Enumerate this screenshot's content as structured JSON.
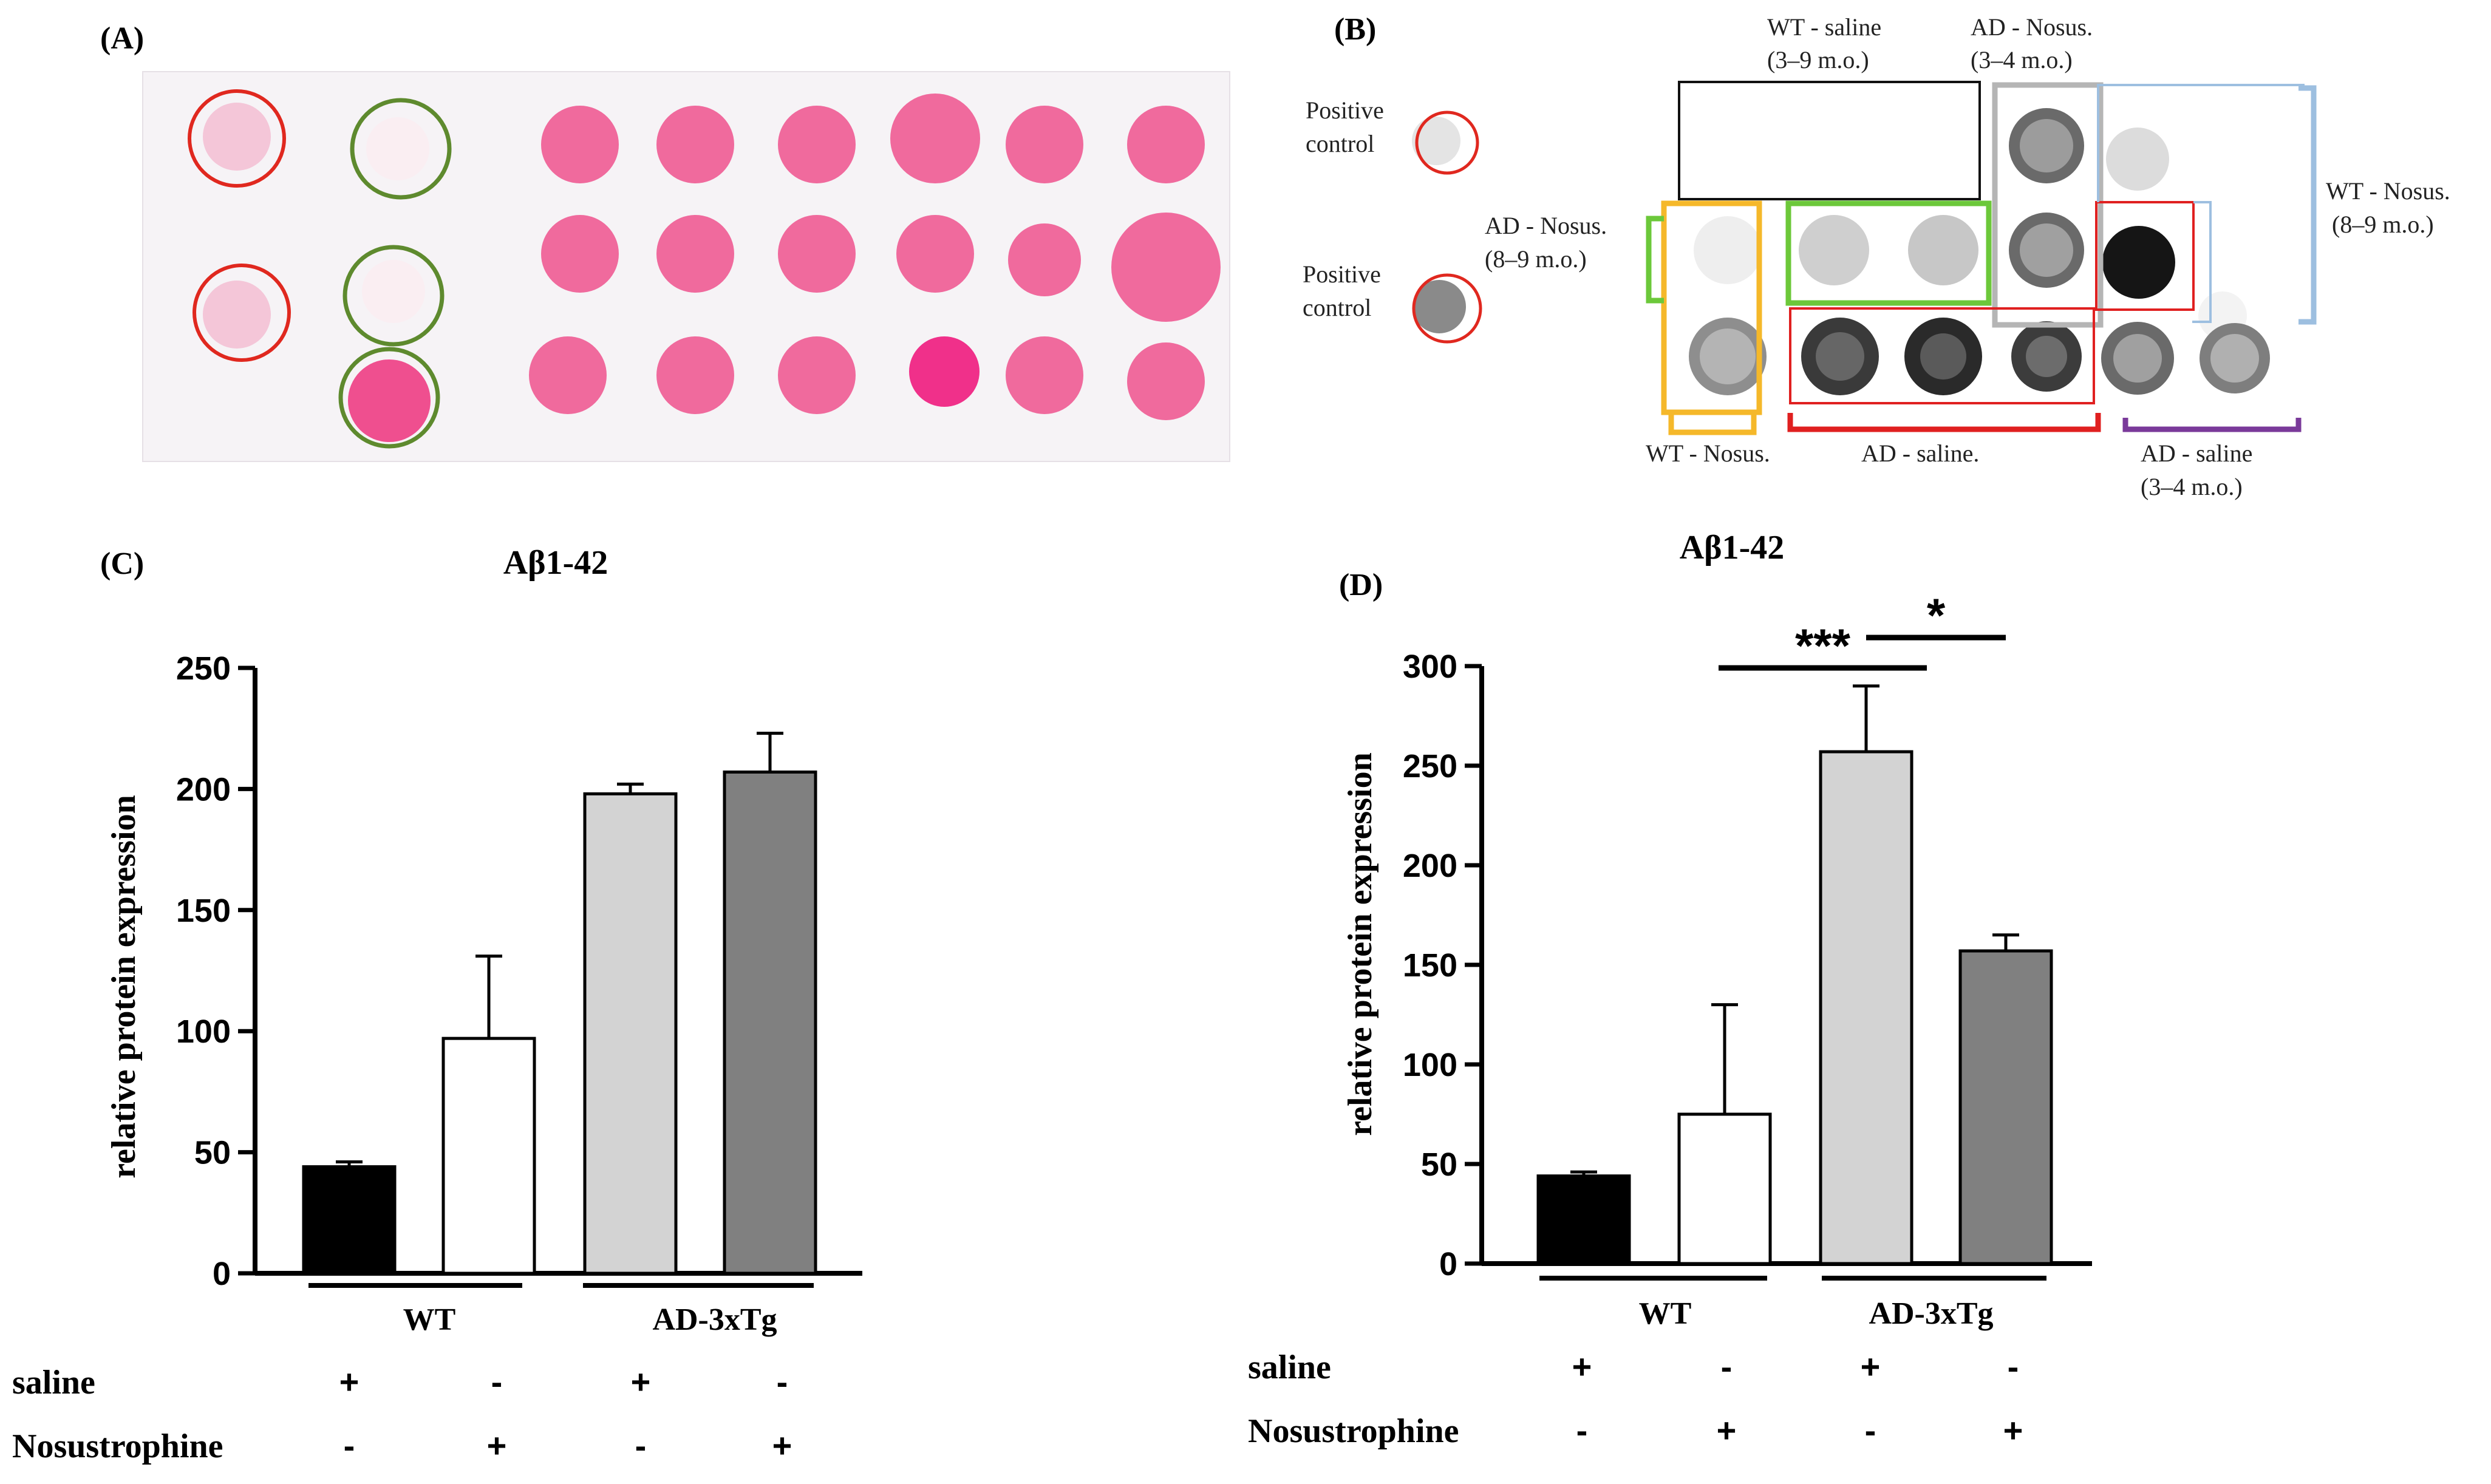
{
  "panels": {
    "a": {
      "label": "(A)"
    },
    "b": {
      "label": "(B)",
      "positive_control_1": [
        "Positive",
        "control"
      ],
      "positive_control_2": [
        "Positive",
        "control"
      ],
      "wt_saline": [
        "WT - saline",
        "(3–9 m.o.)"
      ],
      "ad_nosus_young": [
        "AD - Nosus.",
        "(3–4 m.o.)"
      ],
      "wt_nosus_old": [
        "WT - Nosus.",
        "(8–9 m.o.)"
      ],
      "ad_nosus_old": [
        "AD - Nosus.",
        "(8–9 m.o.)"
      ],
      "wt_nosus": "WT - Nosus.",
      "ad_saline": "AD - saline.",
      "ad_saline_young": [
        "AD - saline",
        "(3–4 m.o.)"
      ]
    },
    "c": {
      "label": "(C)"
    },
    "d": {
      "label": "(D)"
    }
  },
  "colors": {
    "wt_saline": "#000000",
    "wt_nosus": "#ffffff",
    "ad_saline": "#d3d3d3",
    "ad_nosus": "#808080",
    "blot_pink": "#ef4f8f",
    "circle_red": "#e0281f",
    "circle_green": "#5e8a2e",
    "box_orange": "#f5b82a",
    "box_green": "#6cc83a",
    "box_gray": "#b5b5b5",
    "box_blue": "#9dbfe0",
    "box_red": "#e02020",
    "box_purple": "#7a3a9a"
  },
  "conditions": {
    "saline_label": "saline",
    "nosus_label": "Nosustrophine",
    "saline": [
      "+",
      "-",
      "+",
      "-"
    ],
    "nosus": [
      "-",
      "+",
      "-",
      "+"
    ],
    "group_wt": "WT",
    "group_ad": "AD-3xTg"
  },
  "chart_data": [
    {
      "panel": "C",
      "type": "bar",
      "title": "Aβ1-42",
      "ylabel": "relative protein expression",
      "ylim": [
        0,
        250
      ],
      "yticks": [
        0,
        50,
        100,
        150,
        200,
        250
      ],
      "categories": [
        "WT saline",
        "WT Nosustrophine",
        "AD-3xTg saline",
        "AD-3xTg Nosustrophine"
      ],
      "values": [
        44,
        97,
        198,
        207
      ],
      "errors": [
        2,
        34,
        4,
        16
      ],
      "significance": []
    },
    {
      "panel": "D",
      "type": "bar",
      "title": "Aβ1-42",
      "ylabel": "relative protein expression",
      "ylim": [
        0,
        300
      ],
      "yticks": [
        0,
        50,
        100,
        150,
        200,
        250,
        300
      ],
      "categories": [
        "WT saline",
        "WT Nosustrophine",
        "AD-3xTg saline",
        "AD-3xTg Nosustrophine"
      ],
      "values": [
        44,
        75,
        257,
        157
      ],
      "errors": [
        2,
        55,
        33,
        8
      ],
      "significance": [
        {
          "from": 1,
          "to": 2,
          "label": "***"
        },
        {
          "from": 2,
          "to": 3,
          "label": "*"
        }
      ]
    }
  ]
}
